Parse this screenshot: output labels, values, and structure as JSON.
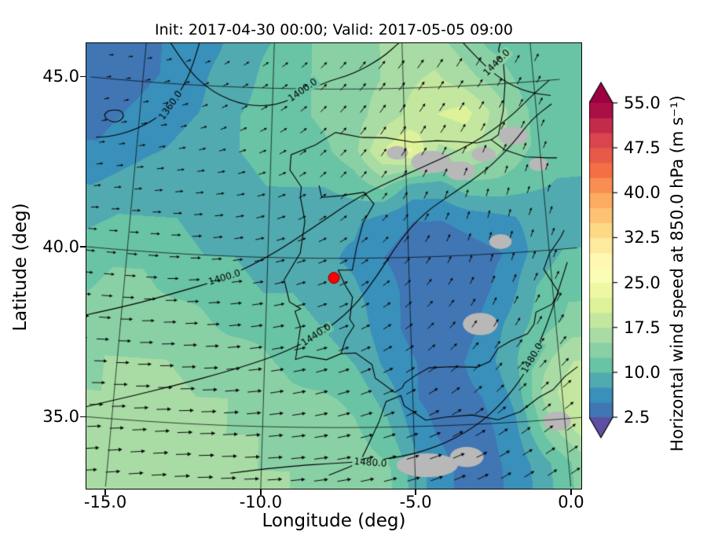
{
  "chart_data": {
    "type": "heatmap",
    "title": "Init: 2017-04-30 00:00; Valid: 2017-05-05 09:00",
    "xlabel": "Longitude (deg)",
    "ylabel": "Latitude (deg)",
    "xtick_labels": [
      "-15.0",
      "-10.0",
      "-5.0",
      "0.0"
    ],
    "ytick_labels": [
      "45.0",
      "40.0",
      "35.0"
    ],
    "colorbar": {
      "label": "Horizontal wind speed at 850.0 hPa (m s⁻¹)",
      "tick_labels": [
        "55.0",
        "47.5",
        "40.0",
        "32.5",
        "25.0",
        "17.5",
        "10.0",
        "2.5"
      ],
      "vmin": 2.5,
      "vmax": 55.0,
      "band_step": 2.5,
      "over_color": "#9e0142",
      "under_color": "#5e4fa2",
      "colormap_anchors": [
        "#5e4fa2",
        "#3288bd",
        "#66c2a5",
        "#abdda4",
        "#e6f598",
        "#ffffbf",
        "#fee08b",
        "#fdae61",
        "#f46d43",
        "#d53e4f",
        "#9e0142"
      ]
    },
    "projection": {
      "type": "lambert_conformal",
      "std_parallels": [
        35,
        45
      ],
      "central_lon": -7.5
    },
    "view_extent": {
      "bottom_lat": 33.2,
      "top_lat": 46.35,
      "bottom_left_lon": -15.64,
      "bottom_right_lon": 0.36
    },
    "wind_speed_grid": {
      "lons": [
        -16.5,
        -15.4375,
        -14.375,
        -13.3125,
        -12.25,
        -11.1875,
        -10.125,
        -9.0625,
        -8.0,
        -6.9375,
        -5.875,
        -4.8125,
        -3.75,
        -2.6875,
        -1.625,
        -0.5625,
        0.5
      ],
      "lats": [
        33.7,
        34.75,
        35.8,
        36.85,
        37.9,
        38.95,
        40.0,
        41.05,
        42.1,
        43.15,
        44.2,
        45.25,
        46.3
      ],
      "values": [
        [
          16,
          16,
          17,
          17,
          16,
          16,
          15,
          15,
          14,
          14,
          13,
          8,
          5,
          4,
          6,
          10,
          14
        ],
        [
          15,
          16,
          16,
          16,
          16,
          15,
          15,
          14,
          14,
          13,
          11,
          6,
          4,
          4,
          7,
          14,
          19
        ],
        [
          15,
          15,
          16,
          16,
          15,
          15,
          14,
          13,
          13,
          12,
          9,
          5,
          4,
          5,
          8,
          16,
          20
        ],
        [
          14,
          15,
          15,
          15,
          14,
          14,
          13,
          12,
          11,
          10,
          7,
          5,
          4,
          6,
          9,
          14,
          17
        ],
        [
          13,
          14,
          14,
          14,
          13,
          12,
          12,
          11,
          10,
          9,
          6,
          4,
          3,
          5,
          8,
          11,
          13
        ],
        [
          12,
          13,
          13,
          12,
          12,
          11,
          10,
          10,
          9,
          8,
          6,
          4,
          3,
          4,
          6,
          10,
          12
        ],
        [
          11,
          12,
          12,
          11,
          10,
          10,
          9,
          9,
          8,
          7,
          5,
          4,
          3,
          4,
          5,
          8,
          10
        ],
        [
          9,
          10,
          10,
          10,
          9,
          9,
          9,
          8,
          8,
          8,
          6,
          5,
          5,
          6,
          7,
          8,
          9
        ],
        [
          7,
          8,
          9,
          9,
          9,
          9,
          10,
          10,
          10,
          11,
          13,
          9,
          9,
          12,
          12,
          11,
          10
        ],
        [
          5,
          6,
          7,
          8,
          9,
          10,
          11,
          11,
          12,
          14,
          20,
          23,
          17,
          18,
          16,
          13,
          11
        ],
        [
          4,
          5,
          6,
          7,
          8,
          10,
          11,
          12,
          13,
          14,
          16,
          18,
          20,
          21,
          17,
          13,
          11
        ],
        [
          3,
          4,
          5,
          6,
          8,
          9,
          11,
          12,
          13,
          14,
          15,
          17,
          18,
          16,
          14,
          12,
          10
        ],
        [
          3,
          4,
          5,
          6,
          7,
          9,
          10,
          12,
          13,
          14,
          15,
          16,
          16,
          14,
          12,
          11,
          10
        ]
      ]
    },
    "wind_vectors": {
      "lons": [
        -16,
        -14,
        -12,
        -10,
        -8,
        -6,
        -4,
        -2,
        0
      ],
      "lats": [
        34,
        36,
        38,
        40,
        42,
        44,
        46
      ],
      "u": [
        [
          14,
          15,
          16,
          15,
          14,
          13,
          12,
          10,
          9
        ],
        [
          13,
          14,
          15,
          14,
          12,
          10,
          8,
          7,
          8
        ],
        [
          11,
          12,
          12,
          11,
          9,
          7,
          5,
          4,
          5
        ],
        [
          8,
          9,
          9,
          8,
          7,
          5,
          3,
          2,
          3
        ],
        [
          5,
          6,
          6,
          6,
          5,
          4,
          3,
          2,
          2
        ],
        [
          3,
          4,
          4,
          5,
          5,
          5,
          5,
          4,
          3
        ],
        [
          2,
          3,
          3,
          4,
          5,
          6,
          6,
          5,
          4
        ]
      ],
      "v": [
        [
          2,
          2,
          1,
          1,
          2,
          3,
          4,
          5,
          5
        ],
        [
          1,
          1,
          1,
          2,
          3,
          4,
          5,
          6,
          6
        ],
        [
          0,
          1,
          1,
          2,
          3,
          4,
          5,
          6,
          7
        ],
        [
          0,
          0,
          1,
          2,
          3,
          4,
          5,
          6,
          6
        ],
        [
          1,
          1,
          1,
          2,
          4,
          5,
          6,
          6,
          5
        ],
        [
          1,
          1,
          2,
          3,
          5,
          7,
          7,
          6,
          5
        ],
        [
          0,
          1,
          2,
          3,
          5,
          7,
          8,
          7,
          6
        ]
      ]
    },
    "geopotential_contours": [
      {
        "level": "1360.0",
        "points": [
          [
            -12.9,
            46.35
          ],
          [
            -13.1,
            45.6
          ],
          [
            -13.5,
            44.8
          ],
          [
            -14.1,
            44.1
          ],
          [
            -15.0,
            43.6
          ],
          [
            -16.0,
            43.3
          ],
          [
            -16.55,
            43.25
          ]
        ],
        "labels": [
          {
            "lon": -13.85,
            "lat": 44.35,
            "rot": -55
          }
        ]
      },
      {
        "level": "1360.0",
        "points": [
          [
            -16.2,
            44.05
          ],
          [
            -15.8,
            44.15
          ],
          [
            -15.55,
            43.95
          ],
          [
            -15.8,
            43.72
          ],
          [
            -16.2,
            43.78
          ],
          [
            -16.35,
            43.92
          ],
          [
            -16.2,
            44.05
          ]
        ],
        "labels": []
      },
      {
        "level": "1400.0",
        "points": [
          [
            -14.2,
            46.35
          ],
          [
            -13.4,
            45.5
          ],
          [
            -12.3,
            44.8
          ],
          [
            -11.0,
            44.45
          ],
          [
            -9.8,
            44.5
          ],
          [
            -8.9,
            44.85
          ],
          [
            -8.0,
            45.2
          ],
          [
            -6.9,
            45.45
          ],
          [
            -5.8,
            45.9
          ],
          [
            -5.1,
            46.35
          ]
        ],
        "labels": [
          {
            "lon": -8.85,
            "lat": 44.95,
            "rot": -35
          }
        ]
      },
      {
        "level": "1400.0",
        "points": [
          [
            -16.55,
            37.9
          ],
          [
            -15.0,
            38.3
          ],
          [
            -13.3,
            38.8
          ],
          [
            -11.6,
            39.3
          ],
          [
            -10.0,
            40.0
          ],
          [
            -8.4,
            40.9
          ],
          [
            -6.8,
            41.8
          ],
          [
            -5.2,
            42.4
          ],
          [
            -3.6,
            42.9
          ],
          [
            -2.2,
            43.4
          ],
          [
            -1.0,
            44.0
          ],
          [
            -0.1,
            44.6
          ],
          [
            0.6,
            45.0
          ]
        ],
        "labels": [
          {
            "lon": -11.5,
            "lat": 39.35,
            "rot": -17
          }
        ]
      },
      {
        "level": "1440.0",
        "points": [
          [
            -16.55,
            35.1
          ],
          [
            -14.8,
            35.6
          ],
          [
            -13.0,
            36.1
          ],
          [
            -11.2,
            36.6
          ],
          [
            -9.6,
            37.1
          ],
          [
            -8.2,
            37.7
          ],
          [
            -7.0,
            38.5
          ],
          [
            -6.1,
            39.5
          ],
          [
            -5.3,
            40.5
          ],
          [
            -4.4,
            41.3
          ],
          [
            -3.2,
            41.9
          ],
          [
            -2.0,
            42.5
          ],
          [
            -1.0,
            43.2
          ],
          [
            -0.2,
            43.9
          ],
          [
            0.6,
            44.3
          ]
        ],
        "labels": [
          {
            "lon": -8.25,
            "lat": 37.72,
            "rot": -33
          }
        ]
      },
      {
        "level": "1440.0",
        "points": [
          [
            -2.7,
            46.35
          ],
          [
            -2.0,
            45.7
          ],
          [
            -1.2,
            45.1
          ],
          [
            -0.3,
            44.7
          ],
          [
            0.6,
            44.55
          ]
        ],
        "labels": [
          {
            "lon": -1.35,
            "lat": 45.62,
            "rot": -45
          }
        ]
      },
      {
        "level": "1480.0",
        "points": [
          [
            -11.0,
            33.6
          ],
          [
            -9.2,
            33.85
          ],
          [
            -7.4,
            33.95
          ],
          [
            -5.8,
            34.05
          ],
          [
            -4.3,
            34.35
          ],
          [
            -3.0,
            34.9
          ],
          [
            -2.0,
            35.6
          ],
          [
            -1.2,
            36.4
          ],
          [
            -0.6,
            37.3
          ],
          [
            -0.1,
            38.2
          ],
          [
            0.35,
            39.1
          ],
          [
            0.6,
            39.6
          ]
        ],
        "labels": [
          {
            "lon": -6.45,
            "lat": 33.95,
            "rot": 4
          },
          {
            "lon": -0.9,
            "lat": 36.85,
            "rot": -60
          }
        ]
      }
    ],
    "coastlines": {
      "iberia": [
        [
          -1.78,
          43.37
        ],
        [
          -2.35,
          43.3
        ],
        [
          -3.05,
          43.37
        ],
        [
          -3.8,
          43.42
        ],
        [
          -4.7,
          43.4
        ],
        [
          -5.7,
          43.55
        ],
        [
          -6.6,
          43.57
        ],
        [
          -7.6,
          43.72
        ],
        [
          -8.35,
          43.35
        ],
        [
          -9.25,
          43.05
        ],
        [
          -9.28,
          42.6
        ],
        [
          -8.85,
          42.1
        ],
        [
          -8.88,
          41.8
        ],
        [
          -8.7,
          41.1
        ],
        [
          -8.85,
          40.15
        ],
        [
          -9.4,
          39.35
        ],
        [
          -9.2,
          38.7
        ],
        [
          -8.8,
          38.5
        ],
        [
          -9.0,
          38.42
        ],
        [
          -8.8,
          37.95
        ],
        [
          -8.95,
          37.0
        ],
        [
          -8.6,
          37.1
        ],
        [
          -7.9,
          37.0
        ],
        [
          -7.4,
          37.18
        ],
        [
          -6.9,
          37.2
        ],
        [
          -6.35,
          36.85
        ],
        [
          -6.25,
          36.45
        ],
        [
          -5.6,
          36.02
        ],
        [
          -5.35,
          36.15
        ],
        [
          -5.25,
          36.3
        ],
        [
          -4.9,
          36.5
        ],
        [
          -4.42,
          36.72
        ],
        [
          -3.7,
          36.73
        ],
        [
          -2.8,
          36.68
        ],
        [
          -2.35,
          36.83
        ],
        [
          -2.05,
          37.2
        ],
        [
          -1.6,
          37.4
        ],
        [
          -1.0,
          37.58
        ],
        [
          -0.75,
          37.85
        ],
        [
          -0.65,
          38.2
        ],
        [
          -0.07,
          38.4
        ],
        [
          0.2,
          38.73
        ],
        [
          -0.25,
          39.45
        ],
        [
          0.0,
          39.9
        ],
        [
          0.45,
          40.35
        ],
        [
          0.6,
          40.55
        ]
      ],
      "france_coast": [
        [
          -1.78,
          43.37
        ],
        [
          -1.5,
          43.5
        ],
        [
          -1.25,
          44.2
        ],
        [
          -1.1,
          45.0
        ],
        [
          -1.1,
          45.6
        ],
        [
          -1.25,
          46.0
        ],
        [
          -1.1,
          46.35
        ]
      ],
      "pyrenees_border": [
        [
          -1.78,
          43.37
        ],
        [
          -1.3,
          43.05
        ],
        [
          -0.55,
          42.8
        ],
        [
          0.3,
          42.72
        ],
        [
          0.6,
          42.7
        ]
      ],
      "portugal_border": [
        [
          -8.2,
          42.15
        ],
        [
          -8.1,
          41.8
        ],
        [
          -7.4,
          41.85
        ],
        [
          -6.55,
          41.95
        ],
        [
          -6.2,
          41.6
        ],
        [
          -6.6,
          41.05
        ],
        [
          -6.85,
          40.3
        ],
        [
          -7.0,
          39.65
        ],
        [
          -7.5,
          39.65
        ],
        [
          -7.25,
          39.2
        ],
        [
          -7.0,
          38.85
        ],
        [
          -7.1,
          38.2
        ],
        [
          -6.95,
          38.0
        ],
        [
          -7.25,
          37.6
        ],
        [
          -7.4,
          37.18
        ]
      ],
      "africa": [
        [
          -7.8,
          33.6
        ],
        [
          -7.1,
          33.85
        ],
        [
          -6.75,
          34.05
        ],
        [
          -6.45,
          34.6
        ],
        [
          -6.15,
          35.15
        ],
        [
          -5.9,
          35.75
        ],
        [
          -5.4,
          35.92
        ],
        [
          -5.3,
          35.62
        ],
        [
          -4.6,
          35.18
        ],
        [
          -3.9,
          35.25
        ],
        [
          -3.05,
          35.28
        ],
        [
          -2.2,
          35.1
        ],
        [
          -1.45,
          35.3
        ],
        [
          -0.8,
          35.68
        ],
        [
          -0.3,
          35.88
        ],
        [
          0.15,
          36.25
        ],
        [
          0.6,
          36.5
        ]
      ]
    },
    "masked_regions": [
      {
        "lon": -4.6,
        "lat": 33.85,
        "rx": 1.0,
        "ry": 0.35
      },
      {
        "lon": -3.3,
        "lat": 34.05,
        "rx": 0.55,
        "ry": 0.3
      },
      {
        "lon": -4.05,
        "lat": 42.8,
        "rx": 0.75,
        "ry": 0.33
      },
      {
        "lon": -3.0,
        "lat": 42.5,
        "rx": 0.55,
        "ry": 0.28
      },
      {
        "lon": -2.1,
        "lat": 42.95,
        "rx": 0.45,
        "ry": 0.22
      },
      {
        "lon": -0.95,
        "lat": 43.45,
        "rx": 0.55,
        "ry": 0.28
      },
      {
        "lon": -2.6,
        "lat": 37.95,
        "rx": 0.6,
        "ry": 0.33
      },
      {
        "lon": -1.7,
        "lat": 40.35,
        "rx": 0.4,
        "ry": 0.22
      },
      {
        "lon": -0.25,
        "lat": 34.95,
        "rx": 0.45,
        "ry": 0.28
      },
      {
        "lon": -5.3,
        "lat": 43.1,
        "rx": 0.4,
        "ry": 0.2
      },
      {
        "lon": -0.1,
        "lat": 42.55,
        "rx": 0.35,
        "ry": 0.2
      }
    ],
    "masked_color": "#b8b8b8",
    "marker": {
      "lon": -7.65,
      "lat": 39.42,
      "color": "#ff0000"
    }
  }
}
